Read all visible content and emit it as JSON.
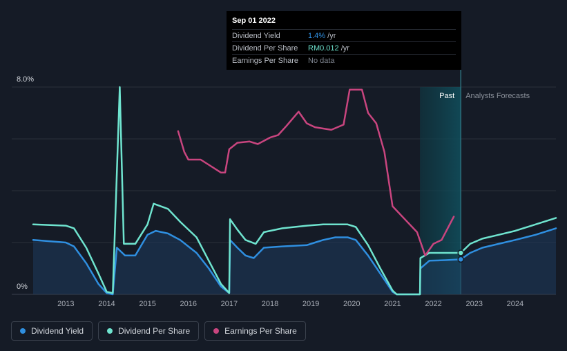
{
  "chart_data": {
    "type": "line",
    "ylim": [
      0,
      8
    ],
    "y_top_label": "8.0%",
    "y_bottom_label": "0%",
    "x_range": [
      2012.2,
      2025.0
    ],
    "x_ticks": [
      "2013",
      "2014",
      "2015",
      "2016",
      "2017",
      "2018",
      "2019",
      "2020",
      "2021",
      "2022",
      "2023",
      "2024"
    ],
    "grid": true,
    "divider_x": 2022.67,
    "past_start_x": 2021.67,
    "past_label": "Past",
    "forecast_label": "Analysts Forecasts",
    "series": [
      {
        "name": "Dividend Yield",
        "color": "#2f8fe0",
        "fill": true,
        "points": [
          [
            2012.2,
            2.1
          ],
          [
            2013.0,
            2.0
          ],
          [
            2013.2,
            1.85
          ],
          [
            2013.5,
            1.2
          ],
          [
            2013.8,
            0.4
          ],
          [
            2014.0,
            0.05
          ],
          [
            2014.15,
            0.0
          ],
          [
            2014.25,
            1.8
          ],
          [
            2014.45,
            1.5
          ],
          [
            2014.7,
            1.5
          ],
          [
            2015.0,
            2.3
          ],
          [
            2015.2,
            2.45
          ],
          [
            2015.5,
            2.35
          ],
          [
            2015.8,
            2.1
          ],
          [
            2016.2,
            1.6
          ],
          [
            2016.5,
            1.0
          ],
          [
            2016.8,
            0.3
          ],
          [
            2017.0,
            0.05
          ],
          [
            2017.02,
            2.1
          ],
          [
            2017.2,
            1.8
          ],
          [
            2017.4,
            1.5
          ],
          [
            2017.6,
            1.4
          ],
          [
            2017.85,
            1.8
          ],
          [
            2018.3,
            1.85
          ],
          [
            2018.9,
            1.9
          ],
          [
            2019.1,
            2.0
          ],
          [
            2019.3,
            2.1
          ],
          [
            2019.6,
            2.2
          ],
          [
            2019.9,
            2.2
          ],
          [
            2020.1,
            2.1
          ],
          [
            2020.4,
            1.5
          ],
          [
            2020.7,
            0.8
          ],
          [
            2021.0,
            0.1
          ],
          [
            2021.1,
            0.0
          ],
          [
            2021.67,
            0.0
          ],
          [
            2021.68,
            1.0
          ],
          [
            2021.9,
            1.3
          ],
          [
            2022.3,
            1.32
          ],
          [
            2022.67,
            1.35
          ],
          [
            2022.9,
            1.6
          ],
          [
            2023.2,
            1.8
          ],
          [
            2023.6,
            1.95
          ],
          [
            2024.0,
            2.1
          ],
          [
            2024.5,
            2.3
          ],
          [
            2025.0,
            2.55
          ]
        ]
      },
      {
        "name": "Dividend Per Share",
        "color": "#6fe4cf",
        "fill": false,
        "points": [
          [
            2012.2,
            2.7
          ],
          [
            2013.0,
            2.65
          ],
          [
            2013.2,
            2.55
          ],
          [
            2013.5,
            1.8
          ],
          [
            2013.8,
            0.8
          ],
          [
            2014.0,
            0.1
          ],
          [
            2014.15,
            0.05
          ],
          [
            2014.32,
            8.0
          ],
          [
            2014.42,
            1.95
          ],
          [
            2014.7,
            1.95
          ],
          [
            2015.0,
            2.7
          ],
          [
            2015.15,
            3.5
          ],
          [
            2015.5,
            3.3
          ],
          [
            2015.8,
            2.8
          ],
          [
            2016.2,
            2.2
          ],
          [
            2016.5,
            1.3
          ],
          [
            2016.8,
            0.4
          ],
          [
            2017.0,
            0.05
          ],
          [
            2017.02,
            2.9
          ],
          [
            2017.2,
            2.5
          ],
          [
            2017.4,
            2.1
          ],
          [
            2017.65,
            1.95
          ],
          [
            2017.85,
            2.4
          ],
          [
            2018.3,
            2.55
          ],
          [
            2018.9,
            2.65
          ],
          [
            2019.3,
            2.7
          ],
          [
            2019.9,
            2.7
          ],
          [
            2020.1,
            2.6
          ],
          [
            2020.4,
            1.9
          ],
          [
            2020.7,
            1.0
          ],
          [
            2021.0,
            0.15
          ],
          [
            2021.1,
            0.0
          ],
          [
            2021.67,
            0.0
          ],
          [
            2021.68,
            1.4
          ],
          [
            2021.9,
            1.6
          ],
          [
            2022.3,
            1.6
          ],
          [
            2022.67,
            1.6
          ],
          [
            2022.9,
            1.95
          ],
          [
            2023.2,
            2.15
          ],
          [
            2023.6,
            2.3
          ],
          [
            2024.0,
            2.45
          ],
          [
            2024.5,
            2.7
          ],
          [
            2025.0,
            2.95
          ]
        ]
      },
      {
        "name": "Earnings Per Share",
        "color": "#c9457f",
        "fill": false,
        "points": [
          [
            2015.75,
            6.3
          ],
          [
            2015.9,
            5.5
          ],
          [
            2016.0,
            5.2
          ],
          [
            2016.3,
            5.2
          ],
          [
            2016.5,
            5.0
          ],
          [
            2016.8,
            4.7
          ],
          [
            2016.9,
            4.7
          ],
          [
            2017.0,
            5.6
          ],
          [
            2017.2,
            5.85
          ],
          [
            2017.5,
            5.9
          ],
          [
            2017.7,
            5.8
          ],
          [
            2018.0,
            6.05
          ],
          [
            2018.2,
            6.15
          ],
          [
            2018.4,
            6.5
          ],
          [
            2018.7,
            7.05
          ],
          [
            2018.9,
            6.6
          ],
          [
            2019.1,
            6.45
          ],
          [
            2019.5,
            6.35
          ],
          [
            2019.8,
            6.55
          ],
          [
            2019.95,
            7.9
          ],
          [
            2020.25,
            7.9
          ],
          [
            2020.4,
            7.0
          ],
          [
            2020.6,
            6.6
          ],
          [
            2020.8,
            5.5
          ],
          [
            2021.0,
            3.4
          ],
          [
            2021.3,
            2.9
          ],
          [
            2021.6,
            2.4
          ],
          [
            2021.8,
            1.5
          ],
          [
            2022.0,
            1.95
          ],
          [
            2022.2,
            2.1
          ],
          [
            2022.5,
            3.0
          ]
        ]
      }
    ],
    "markers": [
      {
        "series": 0,
        "x": 2022.67,
        "y": 1.35
      },
      {
        "series": 1,
        "x": 2022.67,
        "y": 1.6
      }
    ]
  },
  "tooltip": {
    "date": "Sep 01 2022",
    "rows": [
      {
        "label": "Dividend Yield",
        "value": "1.4%",
        "unit": " /yr",
        "color": "#2f8fe0"
      },
      {
        "label": "Dividend Per Share",
        "value": "RM0.012",
        "unit": " /yr",
        "color": "#6fe4cf"
      },
      {
        "label": "Earnings Per Share",
        "value": "No data",
        "unit": "",
        "color": "#7d838e"
      }
    ]
  },
  "legend": [
    {
      "label": "Dividend Yield",
      "color": "#2f8fe0"
    },
    {
      "label": "Dividend Per Share",
      "color": "#6fe4cf"
    },
    {
      "label": "Earnings Per Share",
      "color": "#c9457f"
    }
  ]
}
